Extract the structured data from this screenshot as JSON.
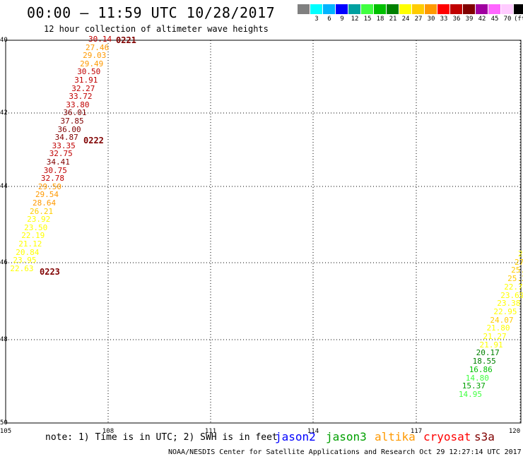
{
  "header": {
    "title": "00:00 – 11:59 UTC 10/28/2017",
    "subtitle": "12 hour collection of altimeter wave heights"
  },
  "legend": {
    "items": [
      {
        "label": "",
        "color": "#808080"
      },
      {
        "label": "3",
        "color": "#00ffff"
      },
      {
        "label": "6",
        "color": "#00b4ff"
      },
      {
        "label": "9",
        "color": "#0000ff"
      },
      {
        "label": "12",
        "color": "#00a0a0"
      },
      {
        "label": "15",
        "color": "#40ff40"
      },
      {
        "label": "18",
        "color": "#00c000"
      },
      {
        "label": "21",
        "color": "#008000"
      },
      {
        "label": "24",
        "color": "#ffff00"
      },
      {
        "label": "27",
        "color": "#ffcc00"
      },
      {
        "label": "30",
        "color": "#ff9900"
      },
      {
        "label": "33",
        "color": "#ff0000"
      },
      {
        "label": "36",
        "color": "#c00000"
      },
      {
        "label": "39",
        "color": "#800000"
      },
      {
        "label": "42",
        "color": "#a000a0"
      },
      {
        "label": "45",
        "color": "#ff66ff"
      },
      {
        "label": "70",
        "color": "#ffccff"
      },
      {
        "label": "",
        "color": "#000000"
      }
    ],
    "unit": "(ft)"
  },
  "map": {
    "lat_labels": [
      "40",
      "42",
      "44",
      "46",
      "48",
      "50"
    ],
    "lon_labels": [
      "105",
      "108",
      "111",
      "114",
      "117",
      "120"
    ],
    "track_left": [
      {
        "v": "30.14",
        "c": "#c00000"
      },
      {
        "v": "27.46",
        "c": "#ff9900"
      },
      {
        "v": "29.03",
        "c": "#ff9900"
      },
      {
        "v": "29.49",
        "c": "#ff9900"
      },
      {
        "v": "30.50",
        "c": "#c00000"
      },
      {
        "v": "31.91",
        "c": "#c00000"
      },
      {
        "v": "32.27",
        "c": "#c00000"
      },
      {
        "v": "33.72",
        "c": "#c00000"
      },
      {
        "v": "33.80",
        "c": "#c00000"
      },
      {
        "v": "36.01",
        "c": "#800000"
      },
      {
        "v": "37.85",
        "c": "#800000"
      },
      {
        "v": "36.00",
        "c": "#800000"
      },
      {
        "v": "34.87",
        "c": "#800000"
      },
      {
        "v": "33.35",
        "c": "#c00000"
      },
      {
        "v": "32.75",
        "c": "#c00000"
      },
      {
        "v": "34.41",
        "c": "#800000"
      },
      {
        "v": "30.75",
        "c": "#c00000"
      },
      {
        "v": "32.78",
        "c": "#c00000"
      },
      {
        "v": "29.50",
        "c": "#ff9900"
      },
      {
        "v": "29.54",
        "c": "#ff9900"
      },
      {
        "v": "28.64",
        "c": "#ff9900"
      },
      {
        "v": "26.21",
        "c": "#ffcc00"
      },
      {
        "v": "23.92",
        "c": "#ffff00"
      },
      {
        "v": "23.50",
        "c": "#ffff00"
      },
      {
        "v": "22.19",
        "c": "#ffff00"
      },
      {
        "v": "21.12",
        "c": "#ffff00"
      },
      {
        "v": "20.84",
        "c": "#ffff00"
      },
      {
        "v": "23.95",
        "c": "#ffff00"
      },
      {
        "v": "22.63",
        "c": "#ffff00"
      }
    ],
    "time_marks": [
      {
        "t": "0221"
      },
      {
        "t": "0222"
      },
      {
        "t": "0223"
      }
    ],
    "track_right": [
      {
        "v": "2",
        "c": "#ffff00"
      },
      {
        "v": "27",
        "c": "#ffcc00"
      },
      {
        "v": "25.",
        "c": "#ffcc00"
      },
      {
        "v": "25.2",
        "c": "#ffcc00"
      },
      {
        "v": "22.7",
        "c": "#ffff00"
      },
      {
        "v": "23.69",
        "c": "#ffff00"
      },
      {
        "v": "23.38",
        "c": "#ffff00"
      },
      {
        "v": "22.95",
        "c": "#ffff00"
      },
      {
        "v": "24.07",
        "c": "#ffcc00"
      },
      {
        "v": "21.80",
        "c": "#ffff00"
      },
      {
        "v": "21.27",
        "c": "#ffff00"
      },
      {
        "v": "21.91",
        "c": "#ffff00"
      },
      {
        "v": "20.17",
        "c": "#008000"
      },
      {
        "v": "18.55",
        "c": "#008000"
      },
      {
        "v": "16.86",
        "c": "#00c000"
      },
      {
        "v": "14.80",
        "c": "#40ff40"
      },
      {
        "v": "15.37",
        "c": "#00a000"
      },
      {
        "v": "14.95",
        "c": "#40ff40"
      }
    ]
  },
  "footer": {
    "note": "note: 1) Time is in UTC; 2) SWH is in feet",
    "satellites": [
      {
        "name": "jason2",
        "color": "#0000ff"
      },
      {
        "name": "jason3",
        "color": "#00a000"
      },
      {
        "name": "altika",
        "color": "#ff9900"
      },
      {
        "name": "cryosat",
        "color": "#ff0000"
      },
      {
        "name": "s3a",
        "color": "#800000"
      }
    ],
    "credit": "NOAA/NESDIS Center for Satellite Applications and Research    Oct 29 12:27:14 UTC 2017"
  }
}
